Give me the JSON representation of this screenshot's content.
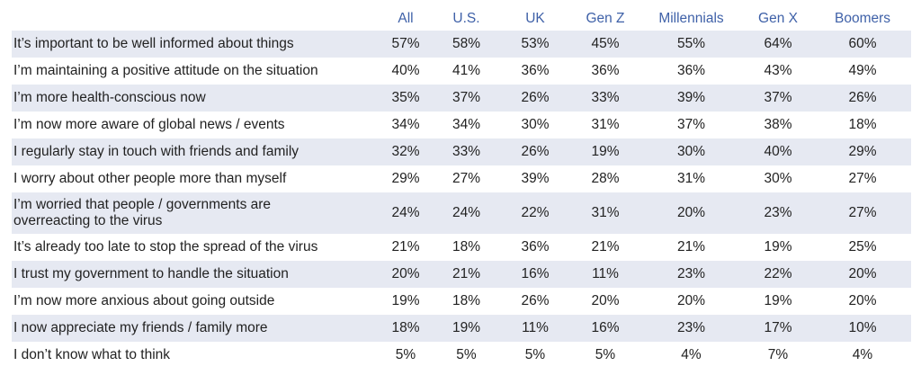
{
  "chart_data": {
    "type": "table",
    "columns": [
      "All",
      "U.S.",
      "UK",
      "Gen Z",
      "Millennials",
      "Gen X",
      "Boomers"
    ],
    "rows": [
      {
        "label": "It’s important to be well informed about things",
        "values": [
          "57%",
          "58%",
          "53%",
          "45%",
          "55%",
          "64%",
          "60%"
        ]
      },
      {
        "label": "I’m maintaining a positive attitude on the situation",
        "values": [
          "40%",
          "41%",
          "36%",
          "36%",
          "36%",
          "43%",
          "49%"
        ]
      },
      {
        "label": "I’m more health-conscious now",
        "values": [
          "35%",
          "37%",
          "26%",
          "33%",
          "39%",
          "37%",
          "26%"
        ]
      },
      {
        "label": "I’m now more aware of global news / events",
        "values": [
          "34%",
          "34%",
          "30%",
          "31%",
          "37%",
          "38%",
          "18%"
        ]
      },
      {
        "label": "I regularly stay in touch with friends and family",
        "values": [
          "32%",
          "33%",
          "26%",
          "19%",
          "30%",
          "40%",
          "29%"
        ]
      },
      {
        "label": "I worry about other people more than myself",
        "values": [
          "29%",
          "27%",
          "39%",
          "28%",
          "31%",
          "30%",
          "27%"
        ]
      },
      {
        "label": "I’m worried that people / governments are overreacting to the virus",
        "values": [
          "24%",
          "24%",
          "22%",
          "31%",
          "20%",
          "23%",
          "27%"
        ]
      },
      {
        "label": "It’s already too late to stop the spread of the virus",
        "values": [
          "21%",
          "18%",
          "36%",
          "21%",
          "21%",
          "19%",
          "25%"
        ]
      },
      {
        "label": "I trust my government to handle the situation",
        "values": [
          "20%",
          "21%",
          "16%",
          "11%",
          "23%",
          "22%",
          "20%"
        ]
      },
      {
        "label": "I’m now more anxious about going outside",
        "values": [
          "19%",
          "18%",
          "26%",
          "20%",
          "20%",
          "19%",
          "20%"
        ]
      },
      {
        "label": "I now appreciate my friends / family more",
        "values": [
          "18%",
          "19%",
          "11%",
          "16%",
          "23%",
          "17%",
          "10%"
        ]
      },
      {
        "label": "I don’t know what to think",
        "values": [
          "5%",
          "5%",
          "5%",
          "5%",
          "4%",
          "7%",
          "4%"
        ]
      }
    ],
    "header_color": "#3f61a8",
    "band_color": "#e6e9f2"
  }
}
